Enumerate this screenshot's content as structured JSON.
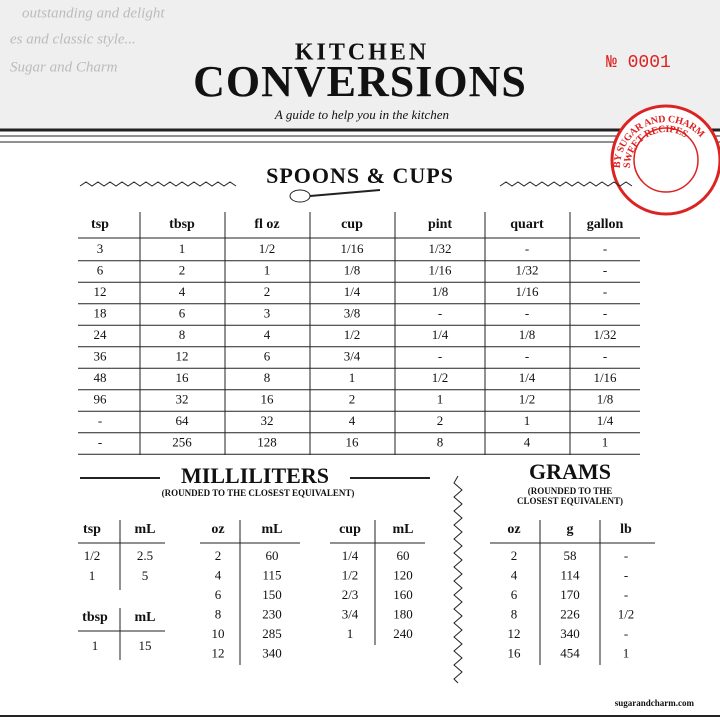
{
  "header": {
    "script_lines": [
      "outstanding and delight",
      "es and classic style...",
      "Sugar and Charm"
    ],
    "title_top": "KITCHEN",
    "title": "CONVERSIONS",
    "subtitle": "A guide to help you in the kitchen",
    "number": "№ 0001"
  },
  "stamp": {
    "outer": "BY SUGAR AND CHARM",
    "inner": "SWEET RECIPES"
  },
  "spoons_cups": {
    "title": "SPOONS & CUPS",
    "columns": [
      "tsp",
      "tbsp",
      "fl oz",
      "cup",
      "pint",
      "quart",
      "gallon"
    ],
    "rows": [
      [
        "3",
        "1",
        "1/2",
        "1/16",
        "1/32",
        "-",
        "-"
      ],
      [
        "6",
        "2",
        "1",
        "1/8",
        "1/16",
        "1/32",
        "-"
      ],
      [
        "12",
        "4",
        "2",
        "1/4",
        "1/8",
        "1/16",
        "-"
      ],
      [
        "18",
        "6",
        "3",
        "3/8",
        "-",
        "-",
        "-"
      ],
      [
        "24",
        "8",
        "4",
        "1/2",
        "1/4",
        "1/8",
        "1/32"
      ],
      [
        "36",
        "12",
        "6",
        "3/4",
        "-",
        "-",
        "-"
      ],
      [
        "48",
        "16",
        "8",
        "1",
        "1/2",
        "1/4",
        "1/16"
      ],
      [
        "96",
        "32",
        "16",
        "2",
        "1",
        "1/2",
        "1/8"
      ],
      [
        "-",
        "64",
        "32",
        "4",
        "2",
        "1",
        "1/4"
      ],
      [
        "-",
        "256",
        "128",
        "16",
        "8",
        "4",
        "1"
      ]
    ]
  },
  "milliliters": {
    "title": "MILLILITERS",
    "note": "(ROUNDED TO THE CLOSEST EQUIVALENT)",
    "tables": [
      {
        "columns": [
          "tsp",
          "mL"
        ],
        "rows": [
          [
            "1/2",
            "2.5"
          ],
          [
            "1",
            "5"
          ]
        ]
      },
      {
        "columns": [
          "tbsp",
          "mL"
        ],
        "rows": [
          [
            "1",
            "15"
          ]
        ]
      },
      {
        "columns": [
          "oz",
          "mL"
        ],
        "rows": [
          [
            "2",
            "60"
          ],
          [
            "4",
            "115"
          ],
          [
            "6",
            "150"
          ],
          [
            "8",
            "230"
          ],
          [
            "10",
            "285"
          ],
          [
            "12",
            "340"
          ]
        ]
      },
      {
        "columns": [
          "cup",
          "mL"
        ],
        "rows": [
          [
            "1/4",
            "60"
          ],
          [
            "1/2",
            "120"
          ],
          [
            "2/3",
            "160"
          ],
          [
            "3/4",
            "180"
          ],
          [
            "1",
            "240"
          ]
        ]
      }
    ]
  },
  "grams": {
    "title": "GRAMS",
    "note_lines": [
      "(ROUNDED TO THE",
      "CLOSEST EQUIVALENT)"
    ],
    "table": {
      "columns": [
        "oz",
        "g",
        "lb"
      ],
      "rows": [
        [
          "2",
          "58",
          "-"
        ],
        [
          "4",
          "114",
          "-"
        ],
        [
          "6",
          "170",
          "-"
        ],
        [
          "8",
          "226",
          "1/2"
        ],
        [
          "12",
          "340",
          "-"
        ],
        [
          "16",
          "454",
          "1"
        ]
      ]
    }
  },
  "footer": "sugarandcharm.com"
}
